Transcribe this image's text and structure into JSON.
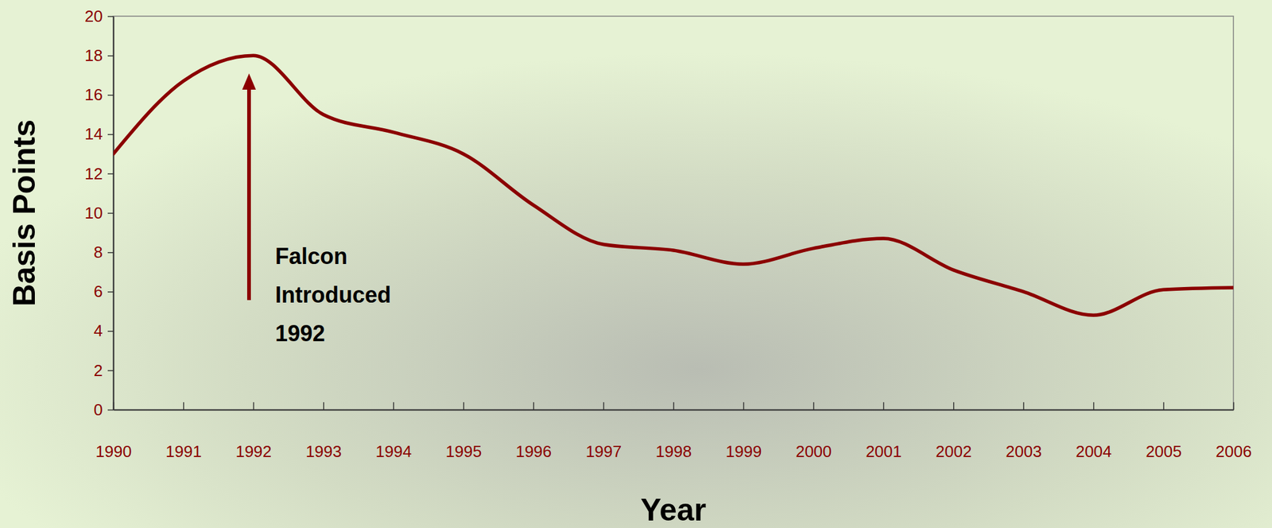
{
  "chart_data": {
    "type": "line",
    "x_label": "Year",
    "y_label": "Basis Points",
    "x": [
      1990,
      1991,
      1992,
      1993,
      1994,
      1995,
      1996,
      1997,
      1998,
      1999,
      2000,
      2001,
      2002,
      2003,
      2004,
      2005,
      2006
    ],
    "values": [
      13.0,
      16.7,
      18.0,
      15.0,
      14.1,
      13.0,
      10.4,
      8.4,
      8.1,
      7.4,
      8.2,
      8.7,
      7.1,
      6.0,
      4.8,
      6.1,
      6.2
    ],
    "color": "#8b0000",
    "xlim": [
      1990,
      2006
    ],
    "xticks": [
      1990,
      1991,
      1992,
      1993,
      1994,
      1995,
      1996,
      1997,
      1998,
      1999,
      2000,
      2001,
      2002,
      2003,
      2004,
      2005,
      2006
    ],
    "ylim": [
      0,
      20
    ],
    "yticks": [
      0,
      2,
      4,
      6,
      8,
      10,
      12,
      14,
      16,
      18,
      20
    ],
    "grid": false,
    "annotations": [
      {
        "text": [
          "Falcon",
          "Introduced",
          "1992"
        ]
      }
    ]
  }
}
